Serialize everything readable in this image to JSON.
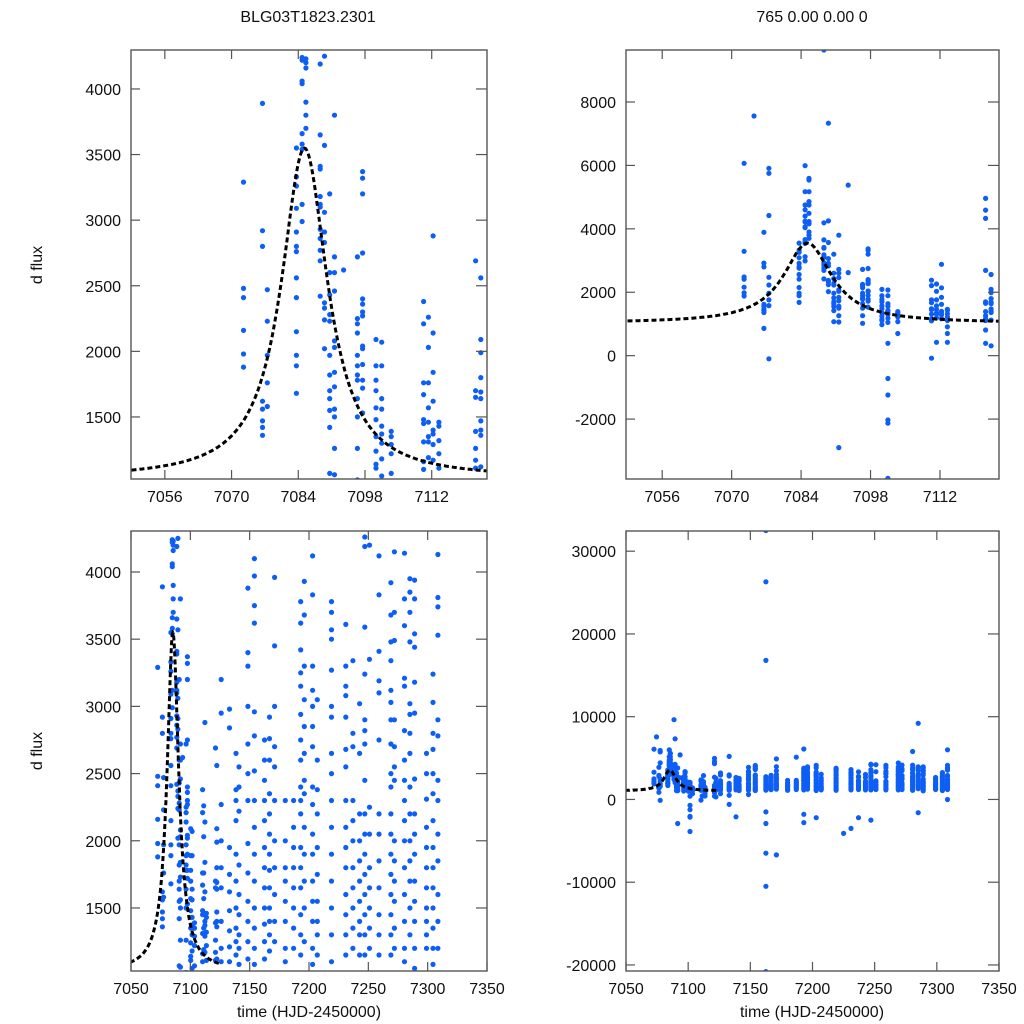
{
  "chart_data": {
    "type": "scatter",
    "title": "BLG03T1823.2301",
    "subtitle": "765  0.00  0.00  0",
    "ylabel": "d flux",
    "xlabel": "time (HJD-2450000)",
    "point_color": "#0d5ef5",
    "model_color": "#000000",
    "model": {
      "type": "microlensing-fit",
      "baseline": 1030,
      "peak": 3550,
      "t0": 7085.3,
      "width": 5.9,
      "t_range": [
        7049,
        7124
      ]
    },
    "panels": [
      {
        "name": "zoom-event-clipped",
        "xlim": [
          7048.9,
          7123.6
        ],
        "ylim": [
          1027,
          4297
        ],
        "xticks": [
          "7056",
          "7070",
          "7084",
          "7098",
          "7112"
        ],
        "yticks": [
          "1500",
          "2000",
          "2500",
          "3000",
          "3500",
          "4000"
        ],
        "show_ylabel": true,
        "show_xlabel": false,
        "show_title": "title"
      },
      {
        "name": "zoom-event-full",
        "xlim": [
          7048.7,
          7123.9
        ],
        "ylim": [
          -3890,
          9640
        ],
        "xticks": [
          "7056",
          "7070",
          "7084",
          "7098",
          "7112"
        ],
        "yticks": [
          "-2000",
          "0",
          "2000",
          "4000",
          "6000",
          "8000"
        ],
        "show_ylabel": false,
        "show_xlabel": false,
        "show_title": "subtitle"
      },
      {
        "name": "season-clipped",
        "xlim": [
          7050,
          7350
        ],
        "ylim": [
          1031,
          4305
        ],
        "xticks": [
          "7050",
          "7100",
          "7150",
          "7200",
          "7250",
          "7300",
          "7350"
        ],
        "yticks": [
          "1500",
          "2000",
          "2500",
          "3000",
          "3500",
          "4000"
        ],
        "show_ylabel": true,
        "show_xlabel": true
      },
      {
        "name": "season-full",
        "xlim": [
          7050,
          7350
        ],
        "ylim": [
          -20730,
          32440
        ],
        "xticks": [
          "7050",
          "7100",
          "7150",
          "7200",
          "7250",
          "7300",
          "7350"
        ],
        "yticks": [
          "-20000",
          "-10000",
          "0",
          "10000",
          "20000",
          "30000"
        ],
        "show_ylabel": false,
        "show_xlabel": true
      }
    ],
    "observations": [
      {
        "t": 7072.5,
        "f": [
          6067,
          3290,
          2480,
          2410,
          2160,
          1980,
          1880
        ]
      },
      {
        "t": 7074.5,
        "f": [
          7560
        ]
      },
      {
        "t": 7076.5,
        "f": [
          3890,
          2920,
          2800,
          1620,
          1560,
          1470,
          1420,
          1360,
          860
        ]
      },
      {
        "t": 7077.5,
        "f": [
          5910,
          5750,
          4420,
          2470,
          2230,
          1970,
          1760,
          1580,
          -100
        ]
      },
      {
        "t": 7083.6,
        "f": [
          3550,
          3330,
          3260,
          3090,
          2910,
          2800,
          2760,
          2560,
          2410,
          2150,
          1970,
          1890,
          1680
        ]
      },
      {
        "t": 7084.8,
        "f": [
          5990,
          5170,
          4750,
          4600,
          4400,
          4240,
          4220,
          4060,
          4040,
          3660,
          3580,
          3540,
          3120,
          2990
        ]
      },
      {
        "t": 7085.6,
        "f": [
          5590,
          5540,
          5170,
          4860,
          4750,
          4490,
          4230,
          4200,
          4160,
          3900,
          3800,
          3700
        ]
      },
      {
        "t": 7088.6,
        "f": [
          9640,
          4190,
          3650,
          3410,
          3390,
          3180,
          3120,
          3100,
          2930,
          2860,
          2770,
          2690,
          2420
        ]
      },
      {
        "t": 7089.5,
        "f": [
          7330,
          4250,
          3570,
          3060,
          2910,
          2830,
          2370,
          2330,
          2240,
          2020
        ]
      },
      {
        "t": 7090.6,
        "f": [
          3200,
          2600,
          2430,
          2280,
          2230,
          1970,
          1820,
          1700,
          1640,
          1550,
          1420,
          1070
        ]
      },
      {
        "t": 7091.6,
        "f": [
          3800,
          2720,
          2600,
          2460,
          2080,
          2030,
          1840,
          1730,
          1560,
          1500,
          1260,
          1060,
          -2900
        ]
      },
      {
        "t": 7093.5,
        "f": [
          5380,
          2620
        ]
      },
      {
        "t": 7096.4,
        "f": [
          2720,
          2250,
          2210,
          2140,
          1970,
          1890,
          1820,
          1780,
          1640,
          1500,
          1260,
          1020
        ]
      },
      {
        "t": 7097.5,
        "f": [
          3370,
          3320,
          3200,
          2750,
          2400,
          2360,
          2300,
          2270,
          2040,
          2020,
          1900,
          1780,
          1720,
          1530
        ]
      },
      {
        "t": 7100.3,
        "f": [
          2090,
          1890,
          1780,
          1700,
          1570,
          1480,
          1350,
          1240,
          1140,
          1110,
          980
        ]
      },
      {
        "t": 7101.5,
        "f": [
          2070,
          1890,
          1640,
          1560,
          1430,
          1370,
          1300,
          1180,
          1050,
          390,
          -720,
          -1240,
          -2030,
          -2130,
          -3870
        ]
      },
      {
        "t": 7103.5,
        "f": [
          1390,
          1350,
          1290,
          1220,
          1070,
          700
        ]
      },
      {
        "t": 7110.3,
        "f": [
          2380,
          2210,
          1760,
          1670,
          1480,
          1450,
          1310,
          1160,
          1100,
          -80
        ]
      },
      {
        "t": 7111.3,
        "f": [
          2260,
          2030,
          1760,
          1570,
          1460,
          1350,
          1310,
          1190,
          420
        ]
      },
      {
        "t": 7112.3,
        "f": [
          2880,
          2140,
          1840,
          1620,
          1400,
          1370,
          1290,
          1170
        ]
      },
      {
        "t": 7113.5,
        "f": [
          1460,
          1430,
          1320,
          1220,
          1110,
          910,
          700,
          420
        ]
      },
      {
        "t": 7121.2,
        "f": [
          4960,
          4590,
          4330,
          2690,
          1700,
          1650,
          1390,
          1260,
          1170,
          1110,
          810,
          390
        ]
      },
      {
        "t": 7122.3,
        "f": [
          2560,
          2090,
          1990,
          1800,
          1690,
          1640,
          1470,
          1400,
          1360,
          1120,
          310
        ]
      },
      {
        "t": 7126,
        "f": [
          3200,
          2950,
          2270,
          2000,
          1800,
          1650,
          1400,
          1200,
          1100,
          700
        ]
      },
      {
        "t": 7133,
        "f": [
          2980,
          2840,
          1950,
          1750,
          1620,
          1480,
          1330,
          1210,
          1100,
          500,
          -600,
          5200
        ]
      },
      {
        "t": 7138.5,
        "f": [
          2650,
          2380,
          2300,
          2150,
          1900,
          1700,
          1500,
          1350,
          1250,
          1150,
          -2100
        ]
      },
      {
        "t": 7141,
        "f": [
          2550,
          2400,
          2220,
          1820,
          1600,
          1450,
          1300,
          1200,
          1080
        ]
      },
      {
        "t": 7148.5,
        "f": [
          3880,
          3400,
          3300,
          3000,
          2720,
          2500,
          2300,
          1980,
          1760,
          1550,
          1400,
          1250,
          1120,
          600
        ]
      },
      {
        "t": 7154,
        "f": [
          4100,
          3970,
          3750,
          3620,
          2960,
          2780,
          2520,
          2300,
          2100,
          1900,
          1700,
          1500,
          1350,
          1200,
          1080
        ]
      },
      {
        "t": 7162.5,
        "f": [
          32500,
          26300,
          16800,
          2750,
          2600,
          2450,
          2300,
          2150,
          1950,
          1800,
          1650,
          1500,
          1380,
          1250,
          1120,
          -1500,
          -2900,
          -6500,
          -10500,
          -20800
        ]
      },
      {
        "t": 7166.7,
        "f": [
          2920,
          2760,
          2600,
          2350,
          2200,
          2050,
          1900,
          1780,
          1650,
          1500,
          1400,
          1300,
          1180
        ]
      },
      {
        "t": 7171,
        "f": [
          4900,
          3960,
          3450,
          3000,
          2700,
          2550,
          2300,
          2000,
          1800,
          1600,
          1400,
          1250,
          -6700
        ]
      },
      {
        "t": 7180,
        "f": [
          2300,
          2000,
          1800,
          1700,
          1550,
          1400,
          1200,
          1100
        ]
      },
      {
        "t": 7187,
        "f": [
          5100,
          2300,
          2100,
          1950,
          1800,
          1650,
          1500,
          1350,
          1200
        ]
      },
      {
        "t": 7193,
        "f": [
          6100,
          3780,
          3620,
          3420,
          3250,
          3150,
          2940,
          2750,
          2600,
          2400,
          2300,
          2200,
          1950,
          1800,
          1650,
          1450,
          1300,
          1150,
          -1800,
          -2800
        ]
      },
      {
        "t": 7196,
        "f": [
          3930,
          3680,
          3300,
          3050,
          2850,
          2650,
          2450,
          2350,
          2100,
          1900,
          1700,
          1500,
          1250
        ]
      },
      {
        "t": 7203,
        "f": [
          4120,
          3830,
          3300,
          3120,
          3000,
          2850,
          2700,
          2400,
          2270,
          2050,
          1900,
          1700,
          1550,
          1400,
          1200,
          1080,
          -2200
        ]
      },
      {
        "t": 7207,
        "f": [
          3050,
          2600,
          2380,
          2200,
          1950,
          1750,
          1550,
          1400,
          1300,
          1150
        ]
      },
      {
        "t": 7219,
        "f": [
          3780,
          3700,
          3570,
          3500,
          3270,
          3000,
          2920,
          2650,
          2500,
          2300,
          2100,
          1900,
          1700,
          1500,
          1300,
          1100
        ]
      },
      {
        "t": 7225,
        "f": [
          -4100
        ]
      },
      {
        "t": 7231,
        "f": [
          3610,
          3300,
          3150,
          3080,
          2920,
          2680,
          2550,
          2300,
          2100,
          1950,
          1800,
          1600,
          1450,
          1300,
          1150,
          -3500
        ]
      },
      {
        "t": 7237,
        "f": [
          3340,
          2800,
          2700,
          2300,
          2150,
          2000,
          1800,
          1650,
          1500,
          1350,
          1200,
          -2200
        ]
      },
      {
        "t": 7242.6,
        "f": [
          3020,
          2650,
          2200,
          2000,
          1850,
          1700,
          1550,
          1400,
          1300,
          1150
        ]
      },
      {
        "t": 7247,
        "f": [
          4260,
          4190,
          3590,
          3240,
          2900,
          2820,
          2720,
          2450,
          2200,
          2050,
          1900,
          1750,
          1600,
          1450,
          1300,
          1150,
          -2500
        ]
      },
      {
        "t": 7251,
        "f": [
          4200,
          3350,
          2250,
          2050,
          1800,
          1650,
          1500,
          1350,
          1200
        ]
      },
      {
        "t": 7259,
        "f": [
          4120,
          3830,
          3410,
          3190,
          3100,
          2750,
          2200,
          2050,
          1850,
          1650,
          1450,
          1300,
          1150
        ]
      },
      {
        "t": 7269,
        "f": [
          4400,
          3920,
          3680,
          3480,
          3340,
          3120,
          3030,
          2900,
          2720,
          2500,
          2400,
          2200,
          2050,
          1900,
          1750,
          1600,
          1450,
          1300,
          1150
        ]
      },
      {
        "t": 7272,
        "f": [
          4150,
          3700,
          3490,
          2900,
          2700,
          2550,
          2450,
          2000,
          1850,
          1700,
          1550,
          1350,
          1200
        ]
      },
      {
        "t": 7280.5,
        "f": [
          5800,
          4140,
          3800,
          3600,
          3210,
          3150,
          2820,
          2600,
          2450,
          2300,
          2150,
          2000,
          1800,
          1600,
          1400,
          1200,
          1100
        ]
      },
      {
        "t": 7285,
        "f": [
          9200,
          3950,
          3850,
          3700,
          3480,
          3020,
          2940,
          2800,
          2650,
          2400,
          2200,
          2000,
          1850,
          1700,
          1500,
          1300,
          -1600
        ]
      },
      {
        "t": 7289,
        "f": [
          3940,
          3800,
          3540,
          3440,
          3180,
          2950,
          2460,
          2200,
          2050,
          1900,
          1700,
          1550,
          1400,
          1200,
          1050
        ]
      },
      {
        "t": 7299,
        "f": [
          2650,
          2500,
          2310,
          2100,
          1950,
          1800,
          1650,
          1500,
          1400,
          1300,
          1200
        ]
      },
      {
        "t": 7304.5,
        "f": [
          3240,
          3030,
          2800,
          2680,
          2500,
          2350,
          2150,
          1950,
          1800,
          1650,
          1500,
          1350,
          1200,
          1080
        ]
      },
      {
        "t": 7308.6,
        "f": [
          6000,
          4130,
          3810,
          3740,
          3530,
          2900,
          2780,
          2450,
          2300,
          2050,
          1850,
          1600,
          1400,
          1200,
          0
        ]
      }
    ]
  }
}
